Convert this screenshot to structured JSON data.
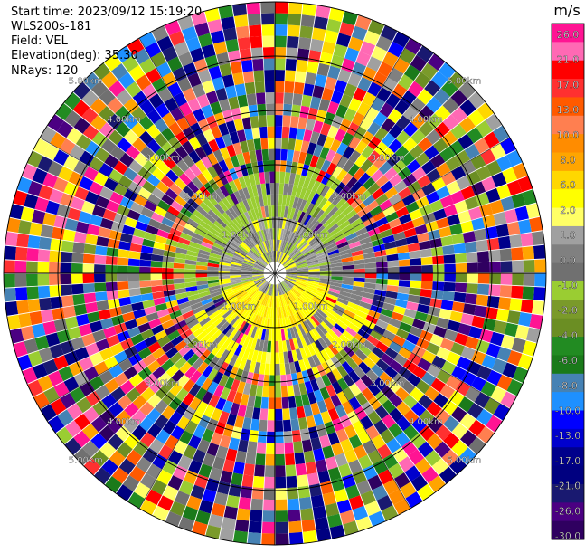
{
  "header": {
    "start_time": "Start time: 2023/09/12 15:19:20",
    "instrument": "WLS200s-181",
    "field": "Field: VEL",
    "elevation": "Elevation(deg): 35.30",
    "nrays": "NRays: 120"
  },
  "chart_data": {
    "type": "heatmap",
    "projection": "polar PPI",
    "field": "VEL",
    "units": "m/s",
    "n_rays": 120,
    "elevation_deg": 35.3,
    "range_ring_labels": [
      "1.00km",
      "2.00km",
      "3.00km",
      "4.00km",
      "5.00km"
    ],
    "colorbar": {
      "label": "m/s",
      "tick_labels": [
        "26.0",
        "21.0",
        "17.0",
        "13.0",
        "10.0",
        "8.0",
        "6.0",
        "2.0",
        "1.0",
        "0.0",
        "-1.0",
        "-2.0",
        "-4.0",
        "-6.0",
        "-8.0",
        "-10.0",
        "-13.0",
        "-17.0",
        "-21.0",
        "-26.0",
        "-30.0"
      ],
      "colors": [
        "#ff1493",
        "#ff69b4",
        "#ff0000",
        "#ff3030",
        "#ff5a00",
        "#ff7f50",
        "#ff8c00",
        "#ffa500",
        "#ffd700",
        "#ffff00",
        "#ffff66",
        "#a0a0a0",
        "#808080",
        "#707070",
        "#9acd32",
        "#7a9a2a",
        "#6b8e23",
        "#228b22",
        "#1a7a1a",
        "#4682b4",
        "#1e90ff",
        "#0000ff",
        "#0000cd",
        "#00008b",
        "#000080",
        "#191970",
        "#4b0082",
        "#2f0060"
      ]
    }
  }
}
